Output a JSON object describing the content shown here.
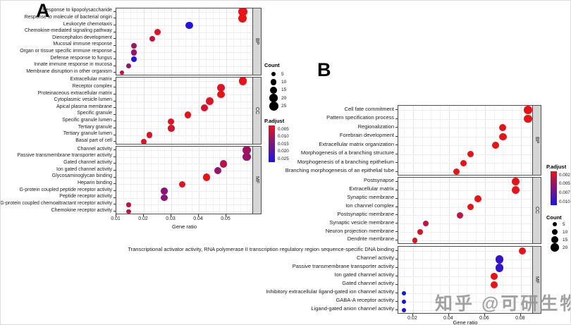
{
  "watermark": "知乎 @可研生物",
  "chart_data": [
    {
      "type": "scatter",
      "panel_label": "A",
      "xlabel": "Gene ratio",
      "x_axis": {
        "min": 0.01,
        "max": 0.06,
        "ticks": [
          0.01,
          0.02,
          0.03,
          0.04,
          0.05
        ],
        "tick_labels": [
          "0.01",
          "0.02",
          "0.03",
          "0.04",
          "0.05"
        ]
      },
      "legend": {
        "count_title": "Count",
        "count_values": [
          5,
          10,
          15,
          20,
          25
        ],
        "padjust_title": "P.adjust",
        "padjust_tick_labels": [
          "0.005",
          "0.010",
          "0.015",
          "0.020",
          "0.025"
        ],
        "padjust_min": 0.005,
        "padjust_max": 0.025,
        "color_low": "#e61419",
        "color_high": "#1914e6"
      },
      "facets": [
        {
          "name": "BP",
          "items": [
            {
              "label": "Response to lipopolysaccharide",
              "gene_ratio": 0.056,
              "count": 24,
              "p_adjust": 0.004
            },
            {
              "label": "Response to molecule of bacterial origin",
              "gene_ratio": 0.056,
              "count": 22,
              "p_adjust": 0.004
            },
            {
              "label": "Leukocyte chemotaxis",
              "gene_ratio": 0.0365,
              "count": 16,
              "p_adjust": 0.024
            },
            {
              "label": "Chemokine-mediated signaling pathway",
              "gene_ratio": 0.025,
              "count": 12,
              "p_adjust": 0.006
            },
            {
              "label": "Diencephalon development",
              "gene_ratio": 0.023,
              "count": 10,
              "p_adjust": 0.009
            },
            {
              "label": "Mucosal immune response",
              "gene_ratio": 0.0165,
              "count": 10,
              "p_adjust": 0.012
            },
            {
              "label": "Organ or tissue specific immune response",
              "gene_ratio": 0.0165,
              "count": 10,
              "p_adjust": 0.013
            },
            {
              "label": "Defense response to fungus",
              "gene_ratio": 0.0165,
              "count": 10,
              "p_adjust": 0.024
            },
            {
              "label": "Innate immune response in mucosa",
              "gene_ratio": 0.0145,
              "count": 9,
              "p_adjust": 0.013
            },
            {
              "label": "Membrane disruption in other organism",
              "gene_ratio": 0.012,
              "count": 5,
              "p_adjust": 0.009
            }
          ]
        },
        {
          "name": "CC",
          "items": [
            {
              "label": "Extracellular matrix",
              "gene_ratio": 0.056,
              "count": 20,
              "p_adjust": 0.005
            },
            {
              "label": "Receptor complex",
              "gene_ratio": 0.048,
              "count": 17,
              "p_adjust": 0.006
            },
            {
              "label": "Proteinaceous extracellular matrix",
              "gene_ratio": 0.048,
              "count": 17,
              "p_adjust": 0.005
            },
            {
              "label": "Cytoplasmic vesicle lumen",
              "gene_ratio": 0.044,
              "count": 16,
              "p_adjust": 0.006
            },
            {
              "label": "Apical plasma membrane",
              "gene_ratio": 0.042,
              "count": 16,
              "p_adjust": 0.007
            },
            {
              "label": "Specific granule",
              "gene_ratio": 0.036,
              "count": 14,
              "p_adjust": 0.005
            },
            {
              "label": "Specific granule lumen",
              "gene_ratio": 0.03,
              "count": 12,
              "p_adjust": 0.006
            },
            {
              "label": "Tertiary granule",
              "gene_ratio": 0.03,
              "count": 13,
              "p_adjust": 0.007
            },
            {
              "label": "Tertiary granule lumen",
              "gene_ratio": 0.022,
              "count": 10,
              "p_adjust": 0.006
            },
            {
              "label": "Basal part of cell",
              "gene_ratio": 0.02,
              "count": 10,
              "p_adjust": 0.006
            }
          ]
        },
        {
          "name": "MF",
          "items": [
            {
              "label": "Channel activity",
              "gene_ratio": 0.0575,
              "count": 22,
              "p_adjust": 0.012
            },
            {
              "label": "Passive transmembrane transporter activity",
              "gene_ratio": 0.0575,
              "count": 20,
              "p_adjust": 0.013
            },
            {
              "label": "Gated channel activity",
              "gene_ratio": 0.049,
              "count": 17,
              "p_adjust": 0.01
            },
            {
              "label": "Ion gated channel activity",
              "gene_ratio": 0.047,
              "count": 16,
              "p_adjust": 0.013
            },
            {
              "label": "Glycosaminoglycan binding",
              "gene_ratio": 0.0428,
              "count": 16,
              "p_adjust": 0.005
            },
            {
              "label": "Heparin binding",
              "gene_ratio": 0.034,
              "count": 13,
              "p_adjust": 0.006
            },
            {
              "label": "G-protein coupled peptide receptor activity",
              "gene_ratio": 0.0274,
              "count": 13,
              "p_adjust": 0.014
            },
            {
              "label": "Peptide receptor activity",
              "gene_ratio": 0.0274,
              "count": 13,
              "p_adjust": 0.014
            },
            {
              "label": "G-protein coupled chemoattractant receptor activity",
              "gene_ratio": 0.0145,
              "count": 6,
              "p_adjust": 0.009
            },
            {
              "label": "Chemokine receptor activity",
              "gene_ratio": 0.0145,
              "count": 6,
              "p_adjust": 0.009
            }
          ]
        }
      ]
    },
    {
      "type": "scatter",
      "panel_label": "B",
      "xlabel": "Gene ratio",
      "x_axis": {
        "min": 0.0118,
        "max": 0.0871,
        "ticks": [
          0.02,
          0.04,
          0.06,
          0.08
        ],
        "tick_labels": [
          "0.02",
          "0.04",
          "0.06",
          "0.08"
        ]
      },
      "legend": {
        "count_title": "Count",
        "count_values": [
          5,
          10,
          15,
          20
        ],
        "padjust_title": "P.adjust",
        "padjust_tick_labels": [
          "0.0025",
          "0.0050",
          "0.0075",
          "0.0100"
        ],
        "padjust_min": 0.0025,
        "padjust_max": 0.01,
        "color_low": "#e61419",
        "color_high": "#1914e6"
      },
      "facets": [
        {
          "name": "BP",
          "items": [
            {
              "label": "Cell fate commitment",
              "gene_ratio": 0.084,
              "count": 20,
              "p_adjust": 0.0025
            },
            {
              "label": "Pattern specification process",
              "gene_ratio": 0.084,
              "count": 19,
              "p_adjust": 0.0025
            },
            {
              "label": "Regionalization",
              "gene_ratio": 0.07,
              "count": 15,
              "p_adjust": 0.0025
            },
            {
              "label": "Forebrain development",
              "gene_ratio": 0.07,
              "count": 16,
              "p_adjust": 0.0025
            },
            {
              "label": "Extracellular matrix organization",
              "gene_ratio": 0.066,
              "count": 15,
              "p_adjust": 0.0025
            },
            {
              "label": "Morphogenesis of a branching structure",
              "gene_ratio": 0.052,
              "count": 13,
              "p_adjust": 0.0025
            },
            {
              "label": "Morphogenesis of a branching epithelium",
              "gene_ratio": 0.048,
              "count": 12,
              "p_adjust": 0.0025
            },
            {
              "label": "Branching morphogenesis of an epithelial tube",
              "gene_ratio": 0.044,
              "count": 12,
              "p_adjust": 0.0025
            }
          ]
        },
        {
          "name": "CC",
          "items": [
            {
              "label": "Postsynapse",
              "gene_ratio": 0.077,
              "count": 18,
              "p_adjust": 0.0025
            },
            {
              "label": "Extracellular matrix",
              "gene_ratio": 0.077,
              "count": 18,
              "p_adjust": 0.0025
            },
            {
              "label": "Synaptic membrane",
              "gene_ratio": 0.056,
              "count": 15,
              "p_adjust": 0.0025
            },
            {
              "label": "Ion channel complex",
              "gene_ratio": 0.052,
              "count": 14,
              "p_adjust": 0.0025
            },
            {
              "label": "Postsynaptic membrane",
              "gene_ratio": 0.046,
              "count": 13,
              "p_adjust": 0.004
            },
            {
              "label": "Synaptic vesicle membrane",
              "gene_ratio": 0.027,
              "count": 10,
              "p_adjust": 0.004
            },
            {
              "label": "Neuron projection membrane",
              "gene_ratio": 0.024,
              "count": 9,
              "p_adjust": 0.003
            },
            {
              "label": "Dendrite membrane",
              "gene_ratio": 0.021,
              "count": 8,
              "p_adjust": 0.003
            }
          ]
        },
        {
          "name": "MF",
          "items": [
            {
              "label": "Transcriptional activator activity, RNA polymerase II transcription regulatory region sequence-specific DNA binding",
              "gene_ratio": 0.081,
              "count": 15,
              "p_adjust": 0.0025
            },
            {
              "label": "Channel activity",
              "gene_ratio": 0.068,
              "count": 18,
              "p_adjust": 0.009
            },
            {
              "label": "Passive transmembrane transporter activity",
              "gene_ratio": 0.068,
              "count": 18,
              "p_adjust": 0.009
            },
            {
              "label": "Ion gated channel activity",
              "gene_ratio": 0.065,
              "count": 15,
              "p_adjust": 0.0025
            },
            {
              "label": "Gated channel activity",
              "gene_ratio": 0.065,
              "count": 15,
              "p_adjust": 0.0025
            },
            {
              "label": "Inhibitory extracellular ligand-gated ion channel activity",
              "gene_ratio": 0.015,
              "count": 5,
              "p_adjust": 0.01
            },
            {
              "label": "GABA-A receptor activity",
              "gene_ratio": 0.015,
              "count": 5,
              "p_adjust": 0.01
            },
            {
              "label": "Ligand-gated anion channel activity",
              "gene_ratio": 0.015,
              "count": 5,
              "p_adjust": 0.01
            }
          ]
        }
      ]
    }
  ]
}
